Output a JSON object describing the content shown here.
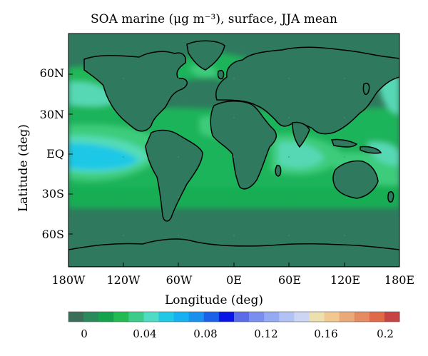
{
  "title": "SOA marine (μg m⁻³), surface, JJA mean",
  "map": {
    "xlabel": "Longitude (deg)",
    "ylabel": "Latitude (deg)",
    "lon_ticks": [
      "180W",
      "120W",
      "60W",
      "0E",
      "60E",
      "120E",
      "180E"
    ],
    "lat_ticks": [
      "60N",
      "30N",
      "EQ",
      "30S",
      "60S"
    ],
    "colors": {
      "background": "#2f7a5e",
      "mid_green": "#1eb45a",
      "light_green": "#3ccc7c",
      "aqua": "#55dcb6",
      "cyan": "#1ec8e6",
      "coast": "#000000"
    }
  },
  "colorbar": {
    "colors": [
      "#3a6e58",
      "#2b8a5c",
      "#13a34c",
      "#22bb52",
      "#3acc88",
      "#4fdcc4",
      "#1fc8e6",
      "#17b0f0",
      "#1990ee",
      "#1a60e8",
      "#0a14e8",
      "#5a6ce8",
      "#7a8ef0",
      "#94aaf2",
      "#b2c2f4",
      "#ccd6f4",
      "#ede0b0",
      "#f0c890",
      "#eba878",
      "#e68a60",
      "#e06a48",
      "#c84444"
    ],
    "tick_labels": [
      "0",
      "0.04",
      "0.08",
      "0.12",
      "0.16",
      "0.2"
    ]
  }
}
